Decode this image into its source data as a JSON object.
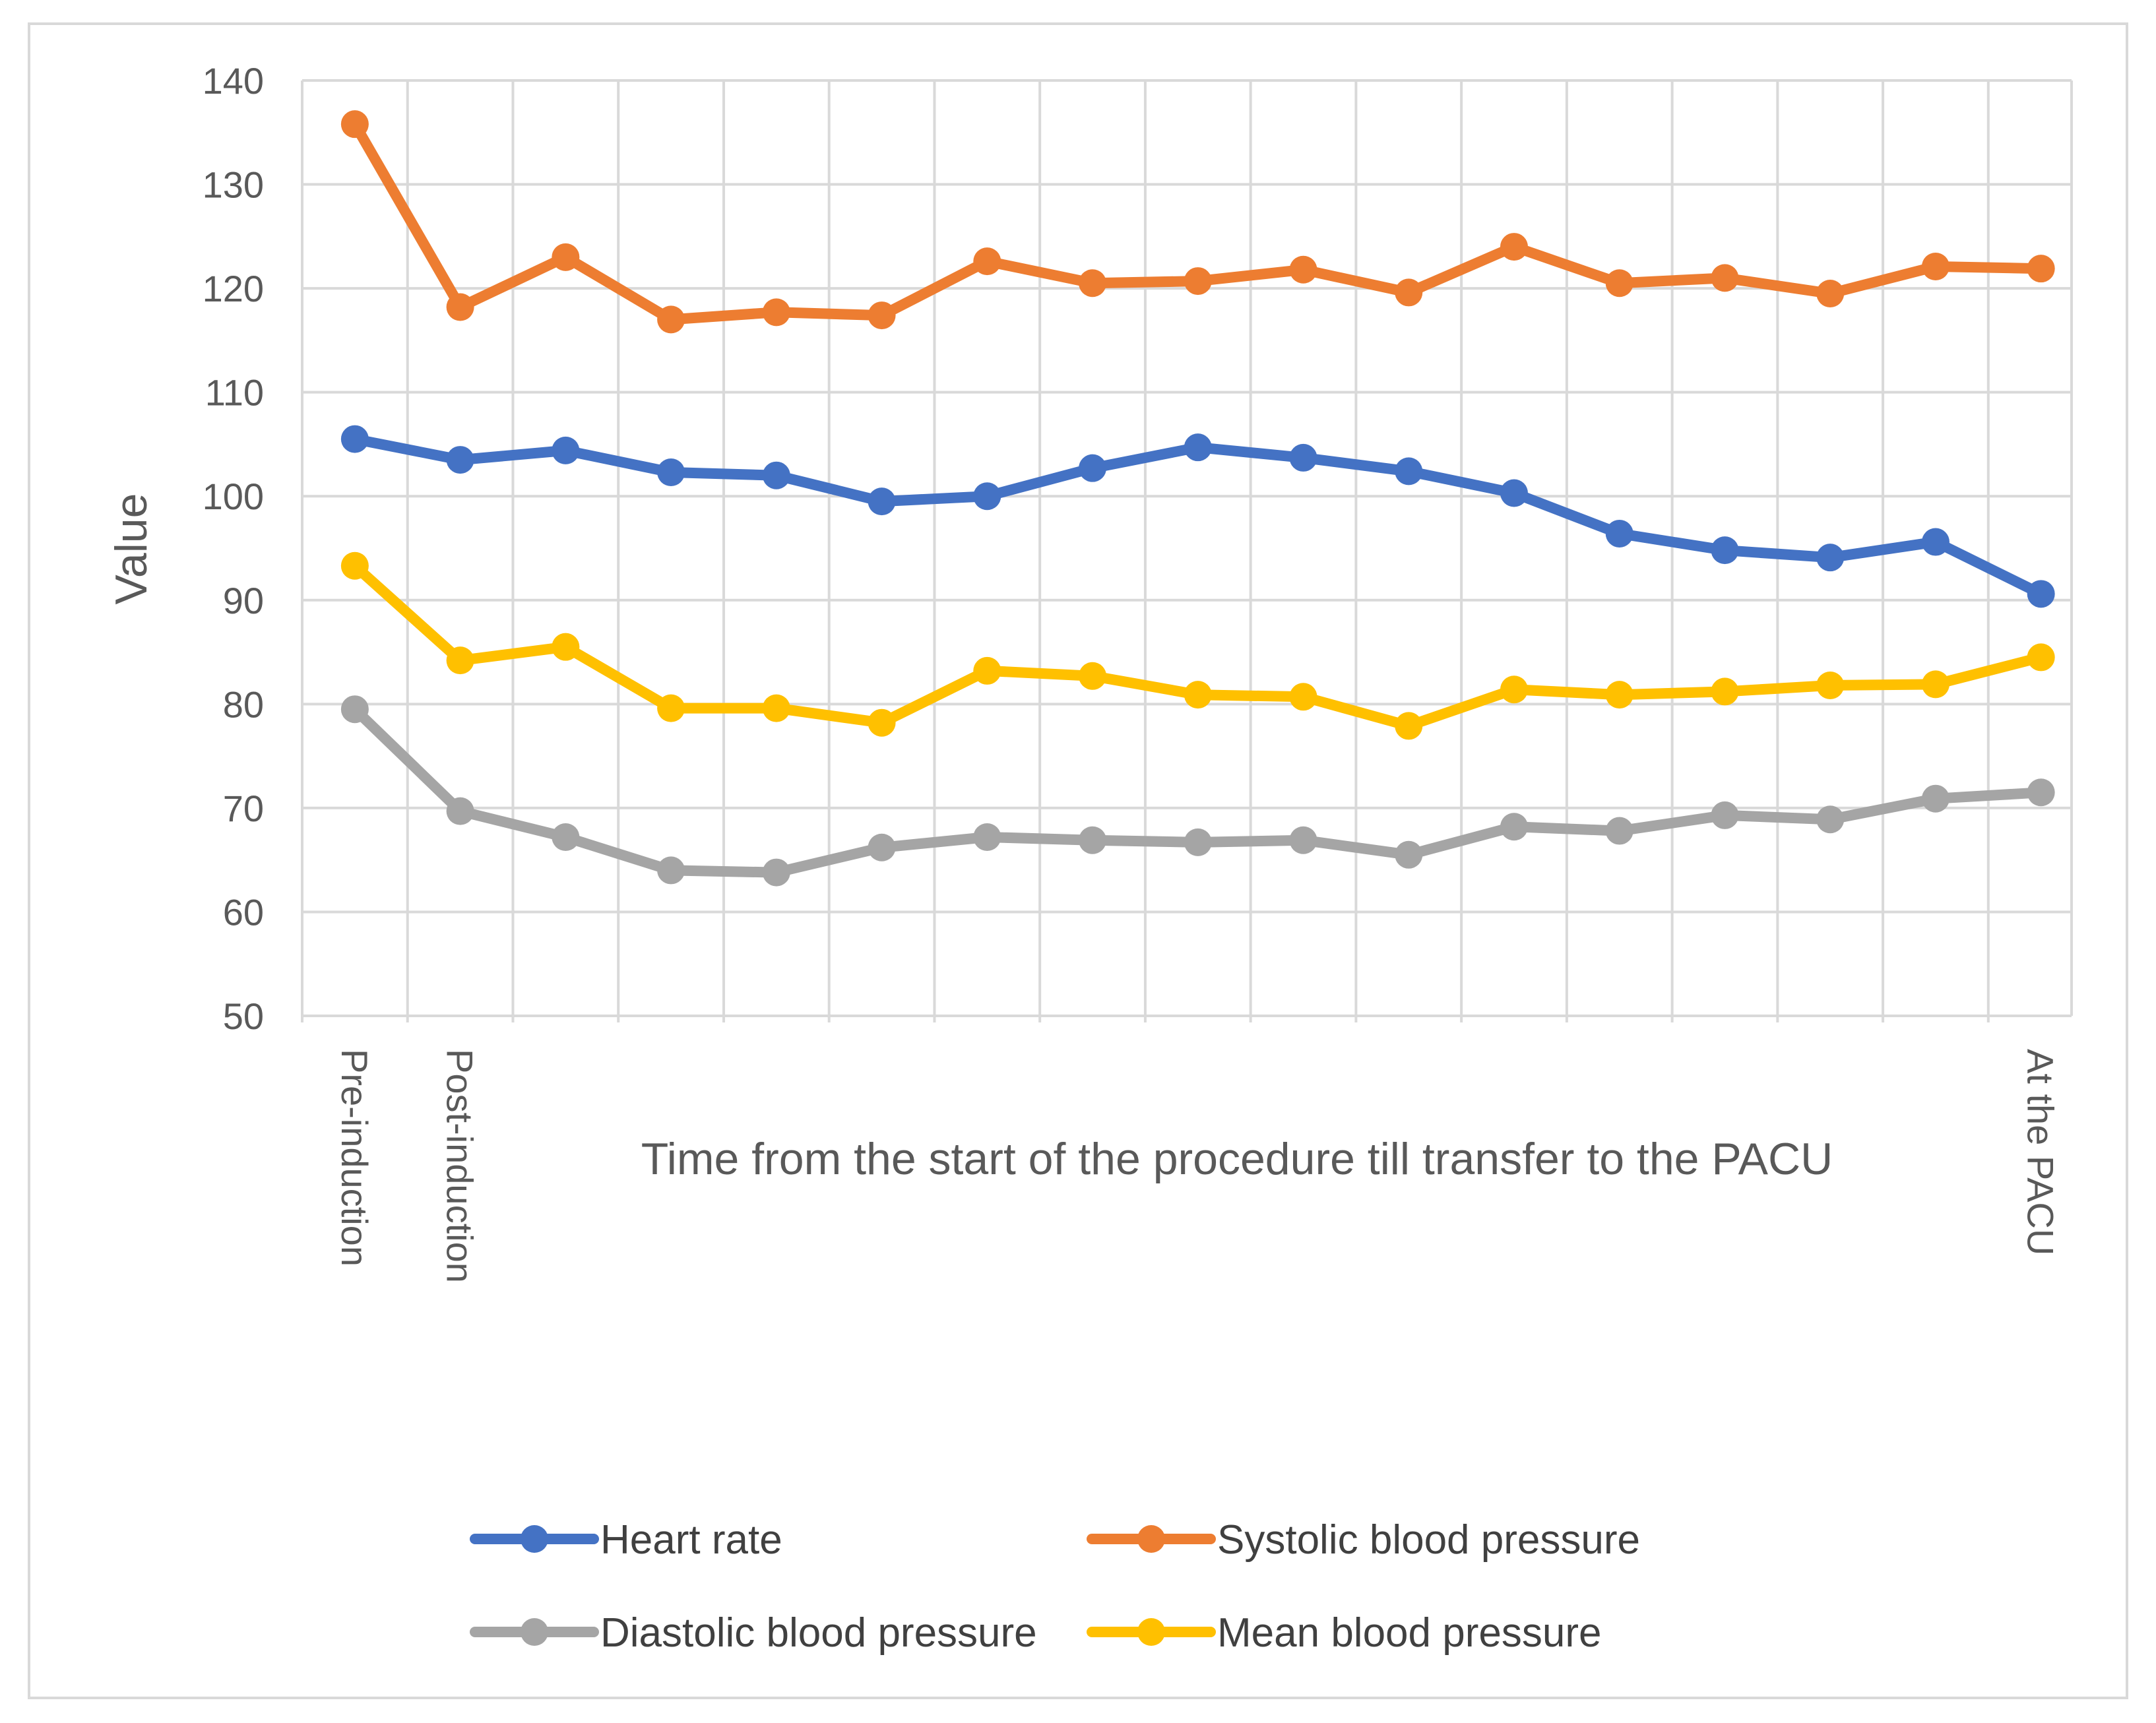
{
  "chart_data": {
    "type": "line",
    "title": "",
    "xlabel": "Time from the start of the procedure till transfer to the PACU",
    "ylabel": "Value",
    "ylim": [
      50,
      140
    ],
    "yticks": [
      50,
      60,
      70,
      80,
      90,
      100,
      110,
      120,
      130,
      140
    ],
    "grid": true,
    "legend_position": "bottom",
    "categories": [
      "Pre-induction",
      "Post-induction",
      "",
      "",
      "",
      "",
      "",
      "",
      "",
      "",
      "",
      "",
      "",
      "",
      "",
      "",
      "At the PACU"
    ],
    "series": [
      {
        "name": "Heart rate",
        "color": "#4472c4",
        "values": [
          105.5,
          103.5,
          104.4,
          102.3,
          102.0,
          99.5,
          100.0,
          102.7,
          104.7,
          103.7,
          102.4,
          100.3,
          96.4,
          94.8,
          94.1,
          95.6,
          90.6
        ]
      },
      {
        "name": "Systolic blood pressure",
        "color": "#ed7d31",
        "values": [
          135.8,
          118.2,
          123.0,
          117.0,
          117.7,
          117.4,
          122.6,
          120.5,
          120.7,
          121.8,
          119.6,
          124.0,
          120.5,
          121.0,
          119.5,
          122.1,
          121.9
        ]
      },
      {
        "name": "Diastolic blood pressure",
        "color": "#a5a5a5",
        "values": [
          79.5,
          69.7,
          67.2,
          64.0,
          63.8,
          66.2,
          67.2,
          66.9,
          66.7,
          66.9,
          65.5,
          68.2,
          67.8,
          69.3,
          68.9,
          70.9,
          71.5
        ]
      },
      {
        "name": "Mean blood pressure",
        "color": "#ffc000",
        "values": [
          93.3,
          84.2,
          85.5,
          79.6,
          79.6,
          78.2,
          83.2,
          82.7,
          80.9,
          80.7,
          77.9,
          81.4,
          80.9,
          81.2,
          81.8,
          81.9,
          84.5
        ]
      }
    ]
  }
}
